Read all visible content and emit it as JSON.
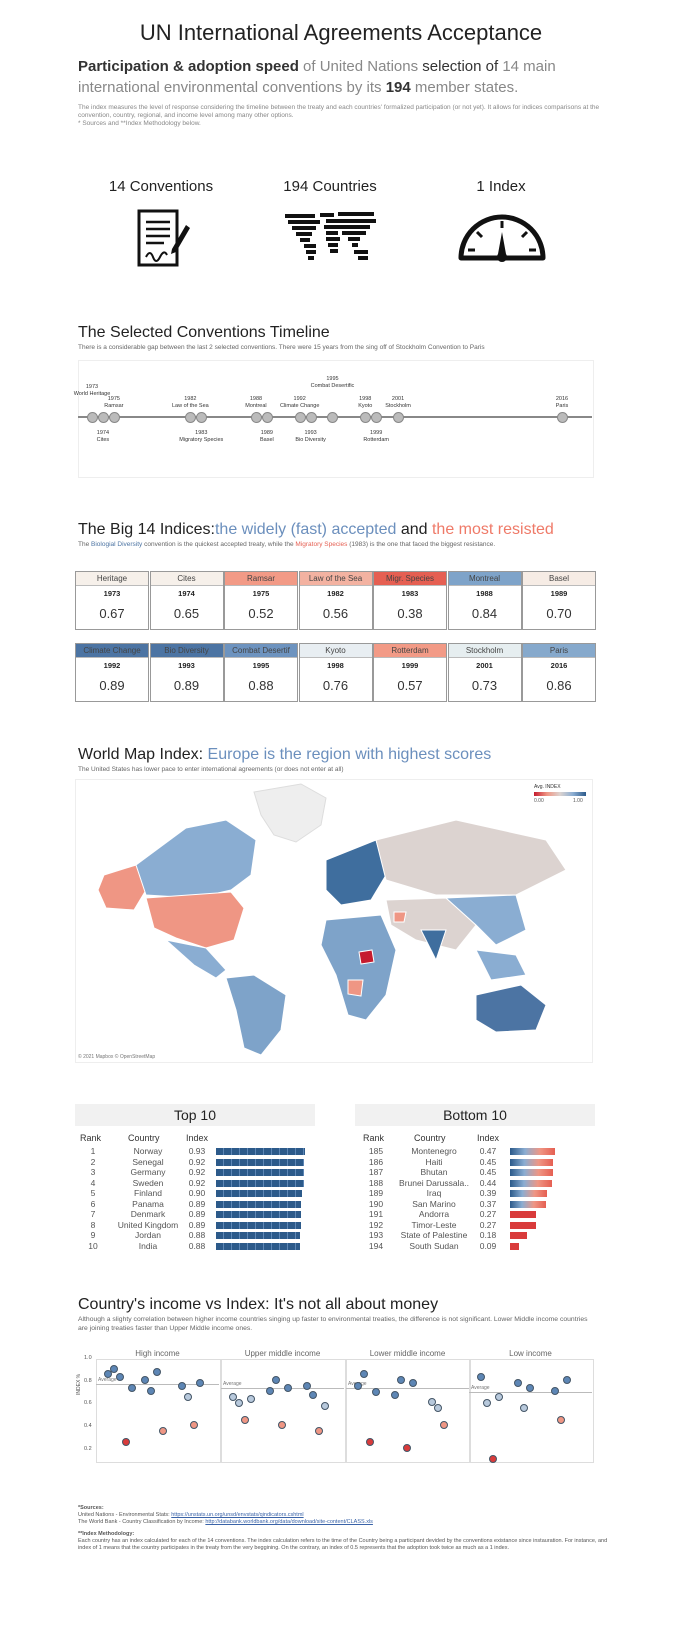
{
  "title": "UN International Agreements Acceptance",
  "intro": {
    "p1": "Participation & adoption speed",
    "p2": " of United Nations ",
    "p3": "selection of",
    "p4": " 14 main international environmental conventions by its ",
    "p5": "194",
    "p6": " member states."
  },
  "note": {
    "line1": "The index measures the level of response considering the timeline between the treaty and each countries' formalized participation (or not yet). It allows for indices comparisons at the convention, country, regional, and income level among many other options.",
    "line2": "* Sources and **Index Methodology below."
  },
  "kpis": [
    {
      "label": "14 Conventions",
      "icon": "contract-icon"
    },
    {
      "label": "194 Countries",
      "icon": "world-map-icon"
    },
    {
      "label": "1 Index",
      "icon": "gauge-icon"
    }
  ],
  "timeline": {
    "title": "The Selected Conventions Timeline",
    "subtitle": "There is a considerable gap between the last 2 selected conventions. There were 15 years from the sing off of Stockholm Convention to Paris",
    "events": [
      {
        "year": "1973",
        "name": "World Heritage",
        "pos": "above"
      },
      {
        "year": "1974",
        "name": "Cites",
        "pos": "below"
      },
      {
        "year": "1975",
        "name": "Ramsar",
        "pos": "above"
      },
      {
        "year": "1982",
        "name": "Law of the Sea",
        "pos": "above"
      },
      {
        "year": "1983",
        "name": "Migratory Species",
        "pos": "below"
      },
      {
        "year": "1988",
        "name": "Montreal",
        "pos": "above"
      },
      {
        "year": "1989",
        "name": "Basel",
        "pos": "below"
      },
      {
        "year": "1992",
        "name": "Climate Change",
        "pos": "above"
      },
      {
        "year": "1993",
        "name": "Bio Diversity",
        "pos": "below"
      },
      {
        "year": "1995",
        "name": "Combat Desertific",
        "pos": "above"
      },
      {
        "year": "1998",
        "name": "Kyoto",
        "pos": "above"
      },
      {
        "year": "1999",
        "name": "Rotterdam",
        "pos": "below"
      },
      {
        "year": "2001",
        "name": "Stockholm",
        "pos": "above"
      },
      {
        "year": "2016",
        "name": "Paris",
        "pos": "above"
      }
    ]
  },
  "big14": {
    "t1": "The Big 14 Indices:",
    "t2": "the widely (fast) accepted",
    "t3": " and ",
    "t4": "the most resisted",
    "s1": "The ",
    "s2": "Biologial Diversity",
    "s3": " convention is the quickest accepted treaty, while the ",
    "s4": "Migratory Species",
    "s5": " (1983) is the one that faced the biggest resistance.",
    "cards": [
      {
        "name": "Heritage",
        "year": "1973",
        "value": "0.67",
        "color": "#f6f0ea"
      },
      {
        "name": "Cites",
        "year": "1974",
        "value": "0.65",
        "color": "#f6f0ea"
      },
      {
        "name": "Ramsar",
        "year": "1975",
        "value": "0.52",
        "color": "#f29a86"
      },
      {
        "name": "Law of the Sea",
        "year": "1982",
        "value": "0.56",
        "color": "#f3b2a1"
      },
      {
        "name": "Migr. Species",
        "year": "1983",
        "value": "0.38",
        "color": "#e55f52"
      },
      {
        "name": "Montreal",
        "year": "1988",
        "value": "0.84",
        "color": "#7ea3c9"
      },
      {
        "name": "Basel",
        "year": "1989",
        "value": "0.70",
        "color": "#f6ece5"
      },
      {
        "name": "Climate Change",
        "year": "1992",
        "value": "0.89",
        "color": "#4c74a3"
      },
      {
        "name": "Bio Diversity",
        "year": "1993",
        "value": "0.89",
        "color": "#4c74a3"
      },
      {
        "name": "Combat Desertif",
        "year": "1995",
        "value": "0.88",
        "color": "#6d93bf"
      },
      {
        "name": "Kyoto",
        "year": "1998",
        "value": "0.76",
        "color": "#e8eef2"
      },
      {
        "name": "Rotterdam",
        "year": "1999",
        "value": "0.57",
        "color": "#f29a86"
      },
      {
        "name": "Stockholm",
        "year": "2001",
        "value": "0.73",
        "color": "#e6eef0"
      },
      {
        "name": "Paris",
        "year": "2016",
        "value": "0.86",
        "color": "#86a9cc"
      }
    ]
  },
  "map": {
    "t1": "World Map Index: ",
    "t2": "Europe is the region with highest scores",
    "subtitle": "The United States has lower pace to enter international agreements (or does not enter at all)",
    "legend_title": "Avg. INDEX",
    "legend_min": "0.00",
    "legend_max": "1.00",
    "attribution": "© 2021 Mapbox © OpenStreetMap"
  },
  "top10": {
    "title": "Top 10",
    "headers": [
      "Rank",
      "Country",
      "Index"
    ],
    "rows": [
      {
        "rank": "1",
        "country": "Norway",
        "index": "0.93",
        "value": 0.93
      },
      {
        "rank": "2",
        "country": "Senegal",
        "index": "0.92",
        "value": 0.92
      },
      {
        "rank": "3",
        "country": "Germany",
        "index": "0.92",
        "value": 0.92
      },
      {
        "rank": "4",
        "country": "Sweden",
        "index": "0.92",
        "value": 0.92
      },
      {
        "rank": "5",
        "country": "Finland",
        "index": "0.90",
        "value": 0.9
      },
      {
        "rank": "6",
        "country": "Panama",
        "index": "0.89",
        "value": 0.89
      },
      {
        "rank": "7",
        "country": "Denmark",
        "index": "0.89",
        "value": 0.89
      },
      {
        "rank": "8",
        "country": "United Kingdom",
        "index": "0.89",
        "value": 0.89
      },
      {
        "rank": "9",
        "country": "Jordan",
        "index": "0.88",
        "value": 0.88
      },
      {
        "rank": "10",
        "country": "India",
        "index": "0.88",
        "value": 0.88
      }
    ]
  },
  "bottom10": {
    "title": "Bottom 10",
    "headers": [
      "Rank",
      "Country",
      "Index"
    ],
    "rows": [
      {
        "rank": "185",
        "country": "Montenegro",
        "index": "0.47",
        "value": 0.47
      },
      {
        "rank": "186",
        "country": "Haiti",
        "index": "0.45",
        "value": 0.45
      },
      {
        "rank": "187",
        "country": "Bhutan",
        "index": "0.45",
        "value": 0.45
      },
      {
        "rank": "188",
        "country": "Brunei Darussala..",
        "index": "0.44",
        "value": 0.44
      },
      {
        "rank": "189",
        "country": "Iraq",
        "index": "0.39",
        "value": 0.39
      },
      {
        "rank": "190",
        "country": "San Marino",
        "index": "0.37",
        "value": 0.37
      },
      {
        "rank": "191",
        "country": "Andorra",
        "index": "0.27",
        "value": 0.27
      },
      {
        "rank": "192",
        "country": "Timor-Leste",
        "index": "0.27",
        "value": 0.27
      },
      {
        "rank": "193",
        "country": "State of Palestine",
        "index": "0.18",
        "value": 0.18
      },
      {
        "rank": "194",
        "country": "South Sudan",
        "index": "0.09",
        "value": 0.09
      }
    ]
  },
  "income": {
    "title": "Country's income vs Index: It's not all about money",
    "subtitle": "Although a slighty correlation between higher income countries singing up faster to environmental treaties, the difference is not significant. Lower Middle income countries are joining treaties faster than Upper Middle income ones.",
    "ylabel": "INDEX %",
    "yticks": [
      "1.0",
      "0.8",
      "0.6",
      "0.4",
      "0.2"
    ],
    "avg_label": "Average"
  },
  "chart_data": {
    "type": "scatter",
    "ylabel": "INDEX %",
    "ylim": [
      0.1,
      1.0
    ],
    "facets": [
      "High income",
      "Upper middle income",
      "Lower middle income",
      "Low income"
    ],
    "averages": [
      0.78,
      0.74,
      0.74,
      0.71
    ]
  },
  "sources": {
    "h": "*Sources:",
    "s1": "United Nations - Environmental Stats: ",
    "u1": "https://unstats.un.org/unsd/envstats/qindicators.cshtml",
    "s2": "The World Bank - Country Classification by Income: ",
    "u2": "http://databank.worldbank.org/data/download/site-content/CLASS.xls",
    "h2": "**Index Methodology:",
    "m": "Each country has an index calculated for each of the 14 conventions. The index calculation refers to the time of the Country being a participant devided by the conventions existance since instauration. For instance, and index of 1 means that the country participates in the treaty from the very beggining. On the contrary, an index of 0.5 represents that the adoption took twice as much as a 1 index."
  }
}
